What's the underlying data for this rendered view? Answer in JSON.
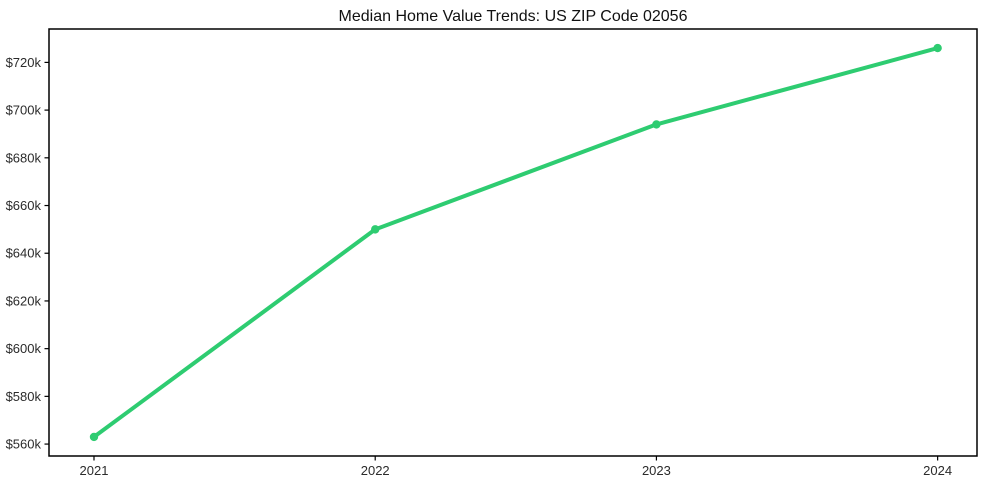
{
  "title": "Median Home Value Trends: US ZIP Code 02056",
  "chart_data": {
    "type": "line",
    "title": "Median Home Value Trends: US ZIP Code 02056",
    "series_name": "Median Home Value",
    "x": [
      2021,
      2022,
      2023,
      2024
    ],
    "x_tick_labels": [
      "2021",
      "2022",
      "2023",
      "2024"
    ],
    "values": [
      563000,
      650000,
      694000,
      726000
    ],
    "values_display": [
      "$563k",
      "$650k",
      "$694k",
      "$726k"
    ],
    "y_ticks": [
      560000,
      580000,
      600000,
      620000,
      640000,
      660000,
      680000,
      700000,
      720000
    ],
    "y_tick_labels": [
      "$560k",
      "$580k",
      "$600k",
      "$620k",
      "$640k",
      "$660k",
      "$680k",
      "$700k",
      "$720k"
    ],
    "xlabel": "",
    "ylabel": "",
    "xlim": [
      2020.84,
      2024.14
    ],
    "ylim": [
      555000,
      734000
    ],
    "grid": false,
    "legend": null,
    "marker": "circle",
    "line_color": "#2ecc71",
    "axis_color": "#000000",
    "text_color": "#2b2b2b",
    "background_color": "#ffffff"
  }
}
